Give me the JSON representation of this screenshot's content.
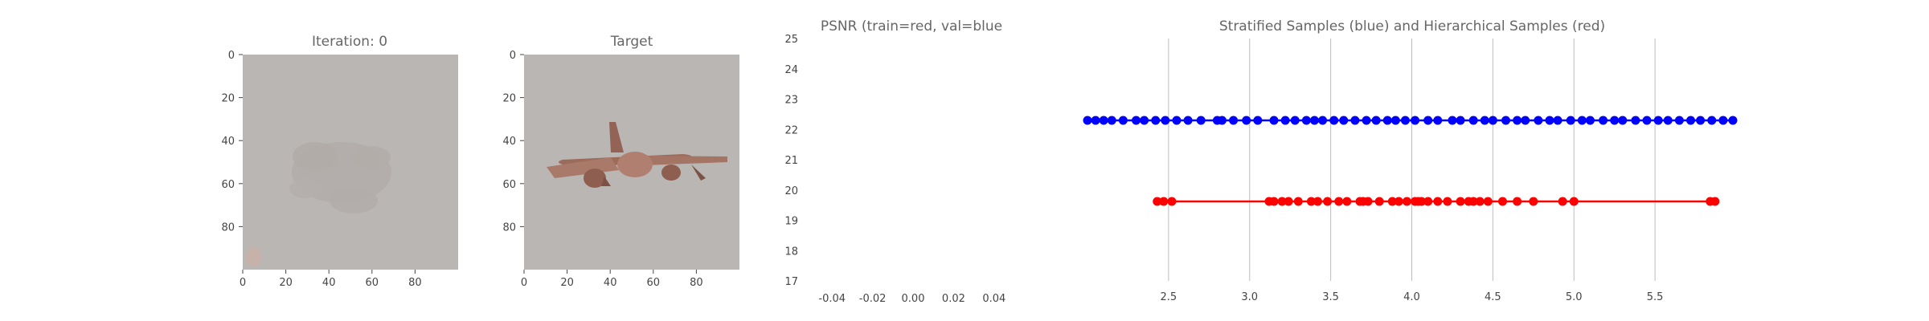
{
  "panels": {
    "iteration": {
      "title": "Iteration: 0",
      "x_ticks": [
        "0",
        "20",
        "40",
        "60",
        "80"
      ],
      "y_ticks": [
        "0",
        "20",
        "40",
        "60",
        "80"
      ],
      "background_color": "#b9b6b3",
      "blob_color": "#b4aeab"
    },
    "target": {
      "title": "Target",
      "x_ticks": [
        "0",
        "20",
        "40",
        "60",
        "80"
      ],
      "y_ticks": [
        "0",
        "20",
        "40",
        "60",
        "80"
      ],
      "background_color": "#b9b6b3",
      "object_color": "#a0705e"
    }
  },
  "chart_data": [
    {
      "type": "line",
      "title": "PSNR (train=red, val=blue",
      "xlabel": "",
      "ylabel": "",
      "xlim": [
        -0.05,
        0.05
      ],
      "ylim": [
        17,
        25
      ],
      "x_ticks": [
        -0.04,
        -0.02,
        0.0,
        0.02,
        0.04
      ],
      "x_tick_labels": [
        "-0.04",
        "-0.02",
        "0.00",
        "0.02",
        "0.04"
      ],
      "y_ticks": [
        17,
        18,
        19,
        20,
        21,
        22,
        23,
        24,
        25
      ],
      "y_tick_labels": [
        "17",
        "18",
        "19",
        "20",
        "21",
        "22",
        "23",
        "24",
        "25"
      ],
      "series": []
    },
    {
      "type": "scatter",
      "title": "Stratified  Samples (blue) and Hierarchical Samples (red)",
      "xlabel": "",
      "ylabel": "",
      "xlim": [
        2.0,
        6.0
      ],
      "grid": "vertical",
      "x_ticks": [
        2.5,
        3.0,
        3.5,
        4.0,
        4.5,
        5.0,
        5.5
      ],
      "x_tick_labels": [
        "2.5",
        "3.0",
        "3.5",
        "4.0",
        "4.5",
        "5.0",
        "5.5"
      ],
      "series": [
        {
          "color": "#0000ff",
          "row": 1,
          "x": [
            2.0,
            2.05,
            2.1,
            2.15,
            2.22,
            2.3,
            2.35,
            2.42,
            2.48,
            2.55,
            2.62,
            2.7,
            2.8,
            2.83,
            2.9,
            2.98,
            3.05,
            3.15,
            3.22,
            3.28,
            3.35,
            3.4,
            3.45,
            3.52,
            3.58,
            3.65,
            3.72,
            3.78,
            3.85,
            3.9,
            3.96,
            4.02,
            4.1,
            4.16,
            4.25,
            4.3,
            4.38,
            4.45,
            4.5,
            4.58,
            4.65,
            4.7,
            4.78,
            4.85,
            4.9,
            4.98,
            5.05,
            5.1,
            5.18,
            5.25,
            5.3,
            5.38,
            5.45,
            5.52,
            5.58,
            5.65,
            5.72,
            5.78,
            5.85,
            5.92,
            5.98
          ]
        },
        {
          "color": "#ff0000",
          "row": 2,
          "x": [
            2.43,
            2.47,
            2.52,
            3.12,
            3.15,
            3.2,
            3.24,
            3.3,
            3.38,
            3.42,
            3.48,
            3.55,
            3.6,
            3.68,
            3.7,
            3.73,
            3.8,
            3.88,
            3.92,
            3.97,
            4.02,
            4.04,
            4.06,
            4.1,
            4.16,
            4.22,
            4.3,
            4.35,
            4.38,
            4.42,
            4.47,
            4.56,
            4.65,
            4.75,
            4.93,
            5.0,
            5.84,
            5.87
          ]
        }
      ]
    }
  ]
}
